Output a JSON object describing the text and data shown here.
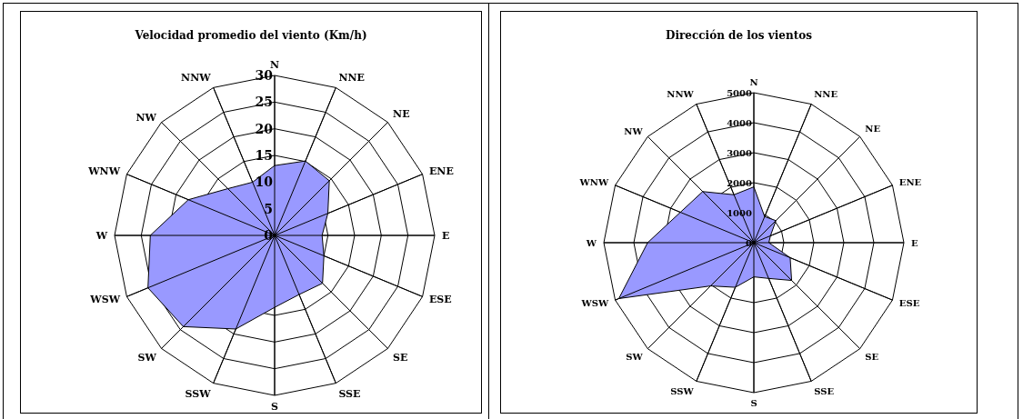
{
  "chart_data": [
    {
      "type": "radar",
      "title": "Velocidad promedio del viento (Km/h)",
      "categories": [
        "N",
        "NNE",
        "NE",
        "ENE",
        "E",
        "ESE",
        "SE",
        "SSE",
        "S",
        "SSW",
        "SW",
        "WSW",
        "W",
        "WNW",
        "NW",
        "NNW"
      ],
      "series": [
        {
          "color": "#9999ff",
          "values": [
            13.1,
            15.1,
            14.5,
            10.8,
            8.9,
            10,
            12.7,
            12,
            13.5,
            19,
            24.2,
            25.7,
            23.3,
            17.5,
            12.4,
            10.8
          ]
        }
      ],
      "ylim": [
        0,
        30
      ],
      "yticks": [
        0,
        5,
        10,
        15,
        20,
        25,
        30
      ],
      "grid": true
    },
    {
      "type": "radar",
      "title": "Dirección de los vientos",
      "categories": [
        "N",
        "NNE",
        "NE",
        "ENE",
        "E",
        "ESE",
        "SE",
        "SSE",
        "S",
        "SSW",
        "SW",
        "WSW",
        "W",
        "WNW",
        "NW",
        "NNW"
      ],
      "series": [
        {
          "color": "#9999ff",
          "values": [
            1860,
            940,
            1040,
            600,
            500,
            1310,
            1780,
            1290,
            1140,
            1610,
            2040,
            4870,
            3540,
            2650,
            2410,
            1730
          ]
        }
      ],
      "ylim": [
        0,
        5000
      ],
      "yticks": [
        0,
        1000,
        2000,
        3000,
        4000,
        5000
      ],
      "grid": true
    }
  ]
}
